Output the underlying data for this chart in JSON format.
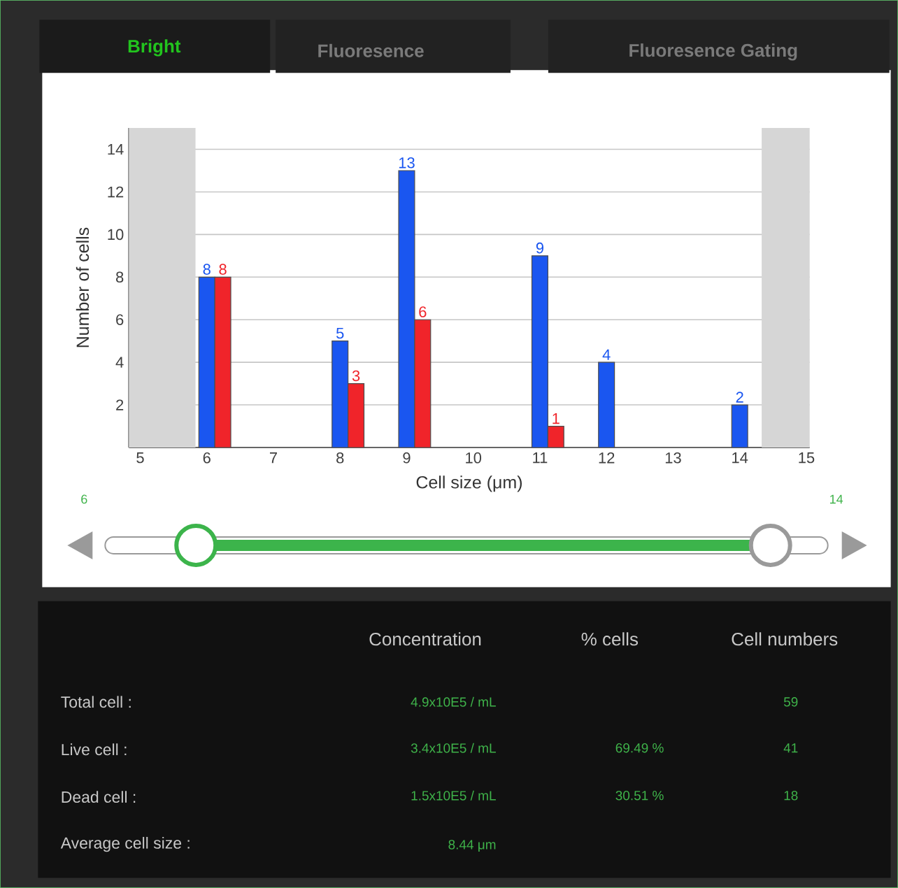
{
  "chart_data": {
    "type": "bar",
    "xlabel": "Cell size (μm)",
    "ylabel": "Number of cells",
    "x": [
      6,
      8,
      9,
      11,
      12,
      14
    ],
    "series": [
      {
        "color": "#1a56f0",
        "values": [
          8,
          5,
          13,
          9,
          4,
          2
        ]
      },
      {
        "color": "#f0242a",
        "values": [
          8,
          3,
          6,
          1,
          null,
          null
        ]
      }
    ],
    "xlim": [
      4.83,
      15.05
    ],
    "xticks": [
      5,
      6,
      7,
      8,
      9,
      10,
      11,
      12,
      13,
      14,
      15
    ],
    "ylim": [
      0,
      15
    ],
    "yticks": [
      2,
      4,
      6,
      8,
      10,
      12,
      14
    ],
    "grid": "y",
    "data_labels": true,
    "bands": [
      {
        "axis": "x",
        "from": 4.83,
        "to": 5.83,
        "color": "#d6d6d6"
      },
      {
        "axis": "x",
        "from": 14.33,
        "to": 15.05,
        "color": "#d6d6d6"
      }
    ],
    "annotations": [
      "Bright",
      "Fluoresence",
      "Fluoresence Gating",
      "6",
      "14",
      "Concentration",
      "% cells",
      "Cell numbers",
      "Total cell :",
      "Live cell :",
      "Dead cell :",
      "Average cell size :",
      "4.9x10E5 / mL",
      "3.4x10E5 / mL",
      "1.5x10E5 / mL",
      "8.44 μm",
      "69.49 %",
      "30.51 %",
      "59",
      "41",
      "18"
    ]
  }
}
